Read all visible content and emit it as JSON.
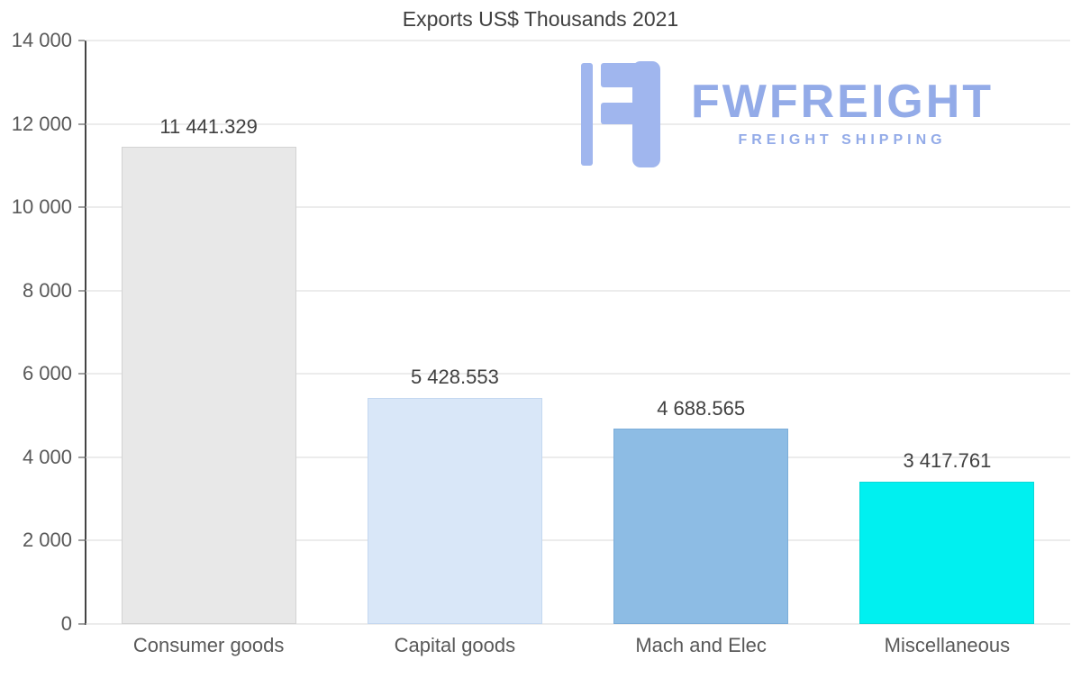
{
  "chart_data": {
    "type": "bar",
    "title": "Exports US$ Thousands 2021",
    "categories": [
      "Consumer goods",
      "Capital goods",
      "Mach and Elec",
      "Miscellaneous"
    ],
    "values": [
      11441.329,
      5428.553,
      4688.565,
      3417.761
    ],
    "value_labels": [
      "11 441.329",
      "5 428.553",
      "4 688.565",
      "3 417.761"
    ],
    "bar_colors": [
      "#e8e8e8",
      "#d9e7f8",
      "#8dbce4",
      "#00f0f0"
    ],
    "bar_border_colors": [
      "#d3d3d3",
      "#c4d8f0",
      "#7cadd9",
      "#0cd8d8"
    ],
    "xlabel": "",
    "ylabel": "",
    "ylim": [
      0,
      14000
    ],
    "yticks": {
      "values": [
        0,
        2000,
        4000,
        6000,
        8000,
        10000,
        12000,
        14000
      ],
      "labels": [
        "0",
        "2 000",
        "4 000",
        "6 000",
        "8 000",
        "10 000",
        "12 000",
        "14 000"
      ]
    },
    "grid": "horizontal",
    "legend": "none"
  },
  "logo": {
    "name": "FWFREIGHT",
    "tagline": "FREIGHT SHIPPING",
    "color": "#9db4ec"
  },
  "colors": {
    "title_text": "#404040",
    "axis_text": "#595959",
    "gridline": "#d9d9d9",
    "axis_line": "#444444",
    "background": "#ffffff"
  }
}
